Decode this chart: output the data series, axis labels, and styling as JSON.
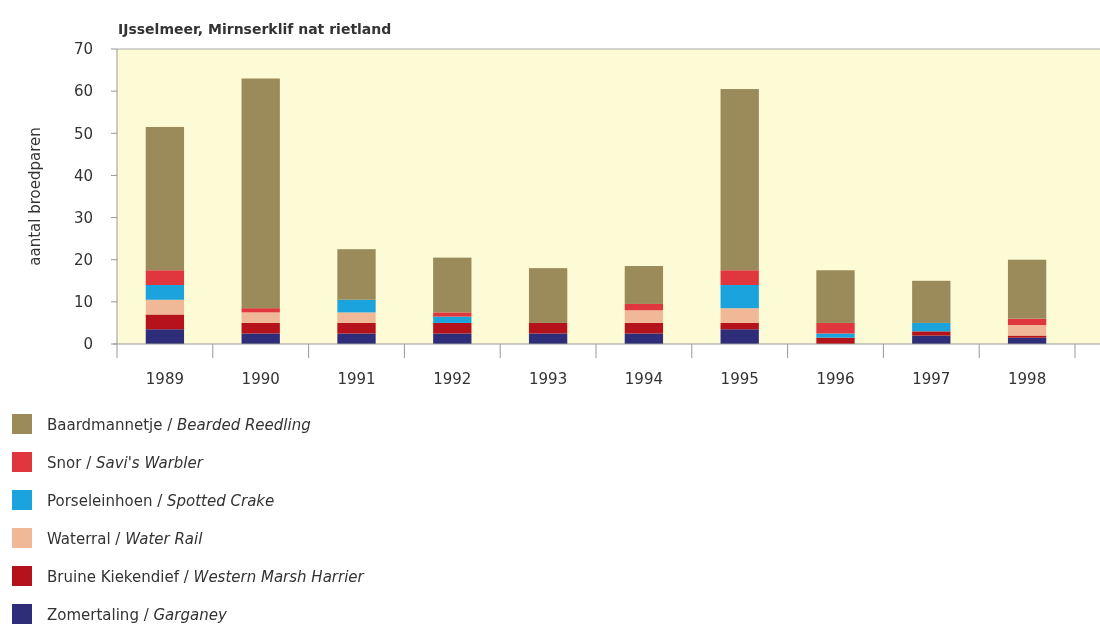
{
  "chart_data": {
    "type": "bar",
    "title": "IJsselmeer, Mirnserklif nat rietland",
    "ylabel": "aantal broedparen",
    "stacked": true,
    "legend": "bottom",
    "grid": false,
    "categories": [
      "1989",
      "1990",
      "1991",
      "1992",
      "1993",
      "1994",
      "1995",
      "1996",
      "1997",
      "1998"
    ],
    "ylim": [
      0,
      70
    ],
    "yticks": [
      0,
      10,
      20,
      30,
      40,
      50,
      60,
      70
    ],
    "series": [
      {
        "name": "Zomertaling / Garganey",
        "color": "#2e2d7a",
        "values": [
          3.5,
          2.5,
          2.5,
          2.5,
          2.5,
          2.5,
          3.5,
          0,
          2,
          1.5
        ]
      },
      {
        "name": "Bruine Kiekendief / Western Marsh Harrier",
        "color": "#b5121b",
        "values": [
          3.5,
          2.5,
          2.5,
          2.5,
          2.5,
          2.5,
          1.5,
          1.5,
          1,
          0.5
        ]
      },
      {
        "name": "Waterral / Water Rail",
        "color": "#f0b896",
        "values": [
          3.5,
          2.5,
          2.5,
          0,
          0,
          3,
          3.5,
          0,
          0,
          2.5
        ]
      },
      {
        "name": "Porseleinhoen / Spotted Crake",
        "color": "#1aa3dc",
        "values": [
          3.5,
          0,
          3,
          1.5,
          0,
          0,
          5.5,
          1,
          2,
          0
        ]
      },
      {
        "name": "Snor / Savi's Warbler",
        "color": "#e0373f",
        "values": [
          3.5,
          1,
          0,
          1,
          0,
          1.5,
          3.5,
          2.5,
          0,
          1.5
        ]
      },
      {
        "name": "Baardmannetje / Bearded Reedling",
        "color": "#9b8b5a",
        "values": [
          34,
          54.5,
          12,
          13,
          13,
          9,
          43,
          12.5,
          10,
          14
        ]
      }
    ]
  }
}
